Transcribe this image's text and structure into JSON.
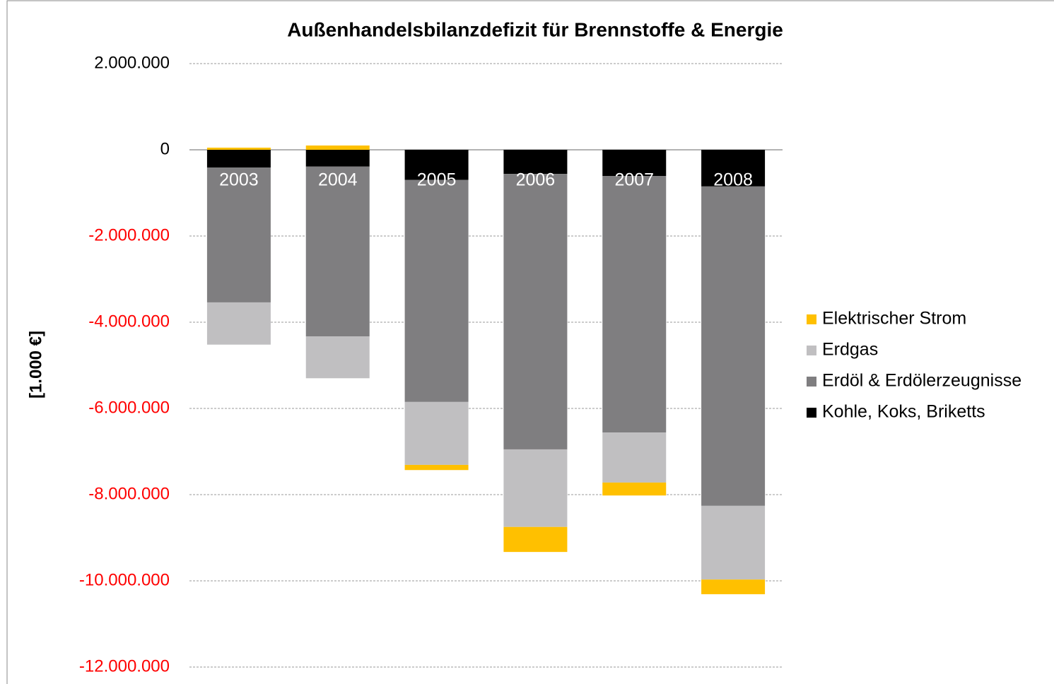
{
  "chart_data": {
    "type": "stacked_bar",
    "title": "Außenhandelsbilanzdefizit für Brennstoffe & Energie",
    "y_label": "[1.000 €]",
    "categories": [
      "2003",
      "2004",
      "2005",
      "2006",
      "2007",
      "2008"
    ],
    "series": [
      {
        "name": "Kohle, Koks, Briketts",
        "color": "#000000",
        "values": [
          -410000,
          -390000,
          -700000,
          -560000,
          -610000,
          -850000
        ]
      },
      {
        "name": "Erdöl & Erdölerzeugnisse",
        "color": "#7f7e80",
        "values": [
          -3130000,
          -3940000,
          -5150000,
          -6390000,
          -5950000,
          -7410000
        ]
      },
      {
        "name": "Erdgas",
        "color": "#c0bfc1",
        "values": [
          -980000,
          -970000,
          -1460000,
          -1800000,
          -1160000,
          -1710000
        ]
      },
      {
        "name": "Elektrischer Strom",
        "color": "#ffc000",
        "values": [
          50000,
          100000,
          -120000,
          -580000,
          -300000,
          -340000
        ]
      }
    ],
    "ylim": [
      -12000000,
      2000000
    ],
    "yticks": [
      {
        "value": 2000000,
        "label": "2.000.000"
      },
      0,
      {
        "value": -2000000,
        "label": "-2.000.000"
      },
      {
        "value": -4000000,
        "label": "-4.000.000"
      },
      {
        "value": -6000000,
        "label": "-6.000.000"
      },
      {
        "value": -8000000,
        "label": "-8.000.000"
      },
      {
        "value": -10000000,
        "label": "-10.000.000"
      },
      {
        "value": -12000000,
        "label": "-12.000.000"
      }
    ],
    "grid": true,
    "legend": "right"
  }
}
